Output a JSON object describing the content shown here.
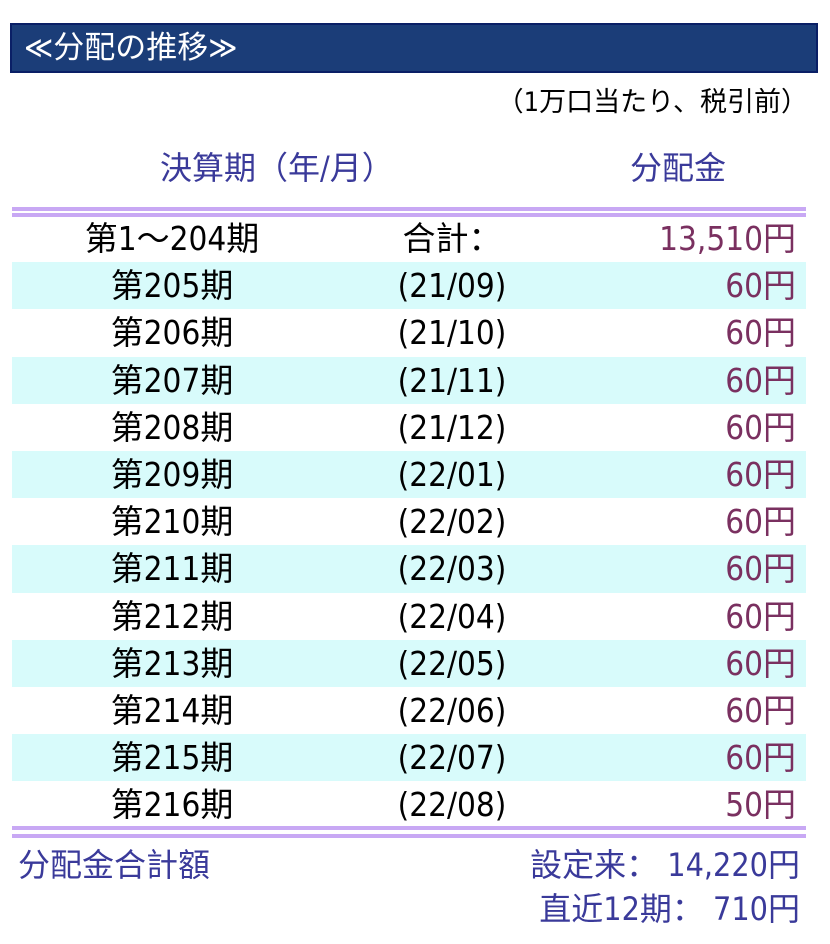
{
  "title": "≪分配の推移≫",
  "note": "（1万口当たり、税引前）",
  "headers": {
    "period": "決算期（年/月）",
    "amount": "分配金"
  },
  "rows": [
    {
      "period": "第1～204期",
      "date": "合計：",
      "amount": "13,510円"
    },
    {
      "period": "第205期",
      "date": "(21/09)",
      "amount": "60円"
    },
    {
      "period": "第206期",
      "date": "(21/10)",
      "amount": "60円"
    },
    {
      "period": "第207期",
      "date": "(21/11)",
      "amount": "60円"
    },
    {
      "period": "第208期",
      "date": "(21/12)",
      "amount": "60円"
    },
    {
      "period": "第209期",
      "date": "(22/01)",
      "amount": "60円"
    },
    {
      "period": "第210期",
      "date": "(22/02)",
      "amount": "60円"
    },
    {
      "period": "第211期",
      "date": "(22/03)",
      "amount": "60円"
    },
    {
      "period": "第212期",
      "date": "(22/04)",
      "amount": "60円"
    },
    {
      "period": "第213期",
      "date": "(22/05)",
      "amount": "60円"
    },
    {
      "period": "第214期",
      "date": "(22/06)",
      "amount": "60円"
    },
    {
      "period": "第215期",
      "date": "(22/07)",
      "amount": "60円"
    },
    {
      "period": "第216期",
      "date": "(22/08)",
      "amount": "50円"
    }
  ],
  "footer": {
    "label": "分配金合計額",
    "since_inception": "設定来： 14,220円",
    "recent12": "直近12期： 710円"
  },
  "colors": {
    "title_bg": "#1b3d78",
    "header_text": "#3a3a9a",
    "amount_text": "#7a3060",
    "alt_row": "#d8fbfb",
    "rule": "#c8a8f4"
  }
}
